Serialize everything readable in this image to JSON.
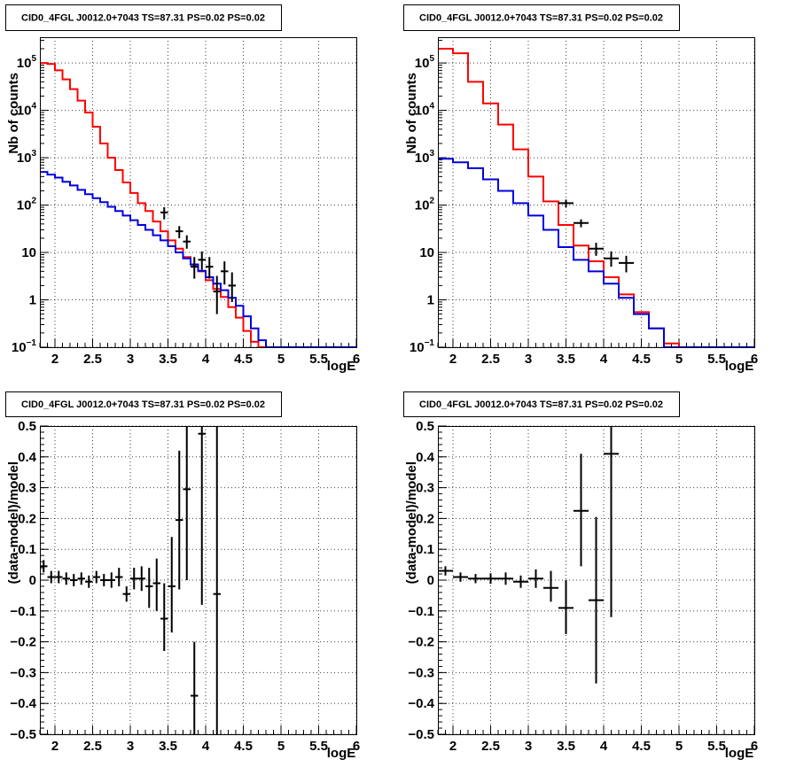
{
  "chart_data": [
    {
      "panel": "top-left",
      "type": "line",
      "title": "CID0_4FGL J0012.0+7043 TS=87.31 PS=0.02 PS=0.02",
      "xlabel": "logE",
      "ylabel": "Nb of counts",
      "ylog": true,
      "xlim": [
        1.8,
        6.0
      ],
      "ylim": [
        0.1,
        350000
      ],
      "xticks": [
        "2",
        "2.5",
        "3",
        "3.5",
        "4",
        "4.5",
        "5",
        "5.5",
        "6"
      ],
      "yticks": [
        {
          "value": 0.1,
          "base": "10",
          "exp": "−1"
        },
        {
          "value": 1,
          "label": "1"
        },
        {
          "value": 10,
          "label": "10"
        },
        {
          "value": 100,
          "base": "10",
          "exp": "2"
        },
        {
          "value": 1000,
          "base": "10",
          "exp": "3"
        },
        {
          "value": 10000,
          "base": "10",
          "exp": "4"
        },
        {
          "value": 100000,
          "base": "10",
          "exp": "5"
        }
      ],
      "grid": true,
      "step_series": [
        {
          "color": "#ff0000",
          "x0": 1.8,
          "dx": 0.1,
          "values": [
            100000,
            95000,
            70000,
            45000,
            28000,
            16000,
            9000,
            4500,
            2000,
            1000,
            550,
            300,
            180,
            110,
            75,
            45,
            28,
            18,
            12,
            8,
            5.5,
            4,
            2.6,
            1.7,
            1.15,
            0.7,
            0.42,
            0.22,
            0.13,
            0.1,
            0.1,
            0.1,
            0.1,
            0.1,
            0.1,
            0.1,
            0.1,
            0.1,
            0.1,
            0.1,
            0.1,
            0.1
          ]
        },
        {
          "color": "#0000dd",
          "x0": 1.8,
          "dx": 0.1,
          "values": [
            500,
            440,
            380,
            310,
            260,
            210,
            170,
            140,
            115,
            92,
            75,
            60,
            48,
            38,
            30,
            23,
            18,
            13.5,
            10,
            7.5,
            5.6,
            4.1,
            3,
            2.2,
            1.6,
            1.1,
            0.75,
            0.45,
            0.25,
            0.14,
            0.1,
            0.1,
            0.1,
            0.1,
            0.1,
            0.1,
            0.1,
            0.1,
            0.1,
            0.1,
            0.1,
            0.1
          ]
        }
      ],
      "points": [
        {
          "x": 3.45,
          "y": 70,
          "ylo": 50,
          "yhi": 90,
          "xerr": 0.05
        },
        {
          "x": 3.65,
          "y": 28,
          "ylo": 20,
          "yhi": 36,
          "xerr": 0.05
        },
        {
          "x": 3.75,
          "y": 17,
          "ylo": 12,
          "yhi": 23,
          "xerr": 0.05
        },
        {
          "x": 3.85,
          "y": 5,
          "ylo": 2.8,
          "yhi": 8,
          "xerr": 0.05
        },
        {
          "x": 3.95,
          "y": 7,
          "ylo": 4.3,
          "yhi": 10.5,
          "xerr": 0.05
        },
        {
          "x": 4.05,
          "y": 5,
          "ylo": 2.8,
          "yhi": 8,
          "xerr": 0.05
        },
        {
          "x": 4.15,
          "y": 1.5,
          "ylo": 0.5,
          "yhi": 3.2,
          "xerr": 0.05
        },
        {
          "x": 4.25,
          "y": 4,
          "ylo": 2.1,
          "yhi": 6.5,
          "xerr": 0.05
        },
        {
          "x": 4.35,
          "y": 2,
          "ylo": 0.9,
          "yhi": 3.8,
          "xerr": 0.05
        }
      ]
    },
    {
      "panel": "top-right",
      "type": "line",
      "title": "CID0_4FGL J0012.0+7043 TS=87.31 PS=0.02 PS=0.02",
      "xlabel": "logE",
      "ylabel": "Nb of counts",
      "ylog": true,
      "xlim": [
        1.8,
        6.0
      ],
      "ylim": [
        0.1,
        350000
      ],
      "xticks": [
        "2",
        "2.5",
        "3",
        "3.5",
        "4",
        "4.5",
        "5",
        "5.5",
        "6"
      ],
      "yticks": [
        {
          "value": 0.1,
          "base": "10",
          "exp": "−1"
        },
        {
          "value": 1,
          "label": "1"
        },
        {
          "value": 10,
          "label": "10"
        },
        {
          "value": 100,
          "base": "10",
          "exp": "2"
        },
        {
          "value": 1000,
          "base": "10",
          "exp": "3"
        },
        {
          "value": 10000,
          "base": "10",
          "exp": "4"
        },
        {
          "value": 100000,
          "base": "10",
          "exp": "5"
        }
      ],
      "grid": true,
      "step_series": [
        {
          "color": "#ff0000",
          "x0": 1.8,
          "dx": 0.2,
          "values": [
            200000,
            160000,
            40000,
            14000,
            5000,
            1500,
            400,
            120,
            38,
            14,
            6.5,
            3,
            1.3,
            0.55,
            0.25,
            0.12,
            0.1,
            0.1,
            0.1,
            0.1,
            0.1
          ]
        },
        {
          "color": "#0000dd",
          "x0": 1.8,
          "dx": 0.2,
          "values": [
            950,
            800,
            600,
            350,
            200,
            110,
            60,
            30,
            13,
            7,
            4,
            2.2,
            1.1,
            0.5,
            0.25,
            0.1,
            0.1,
            0.1,
            0.1,
            0.1,
            0.1
          ]
        }
      ],
      "points": [
        {
          "x": 3.5,
          "y": 110,
          "ylo": 90,
          "yhi": 130,
          "xerr": 0.1
        },
        {
          "x": 3.7,
          "y": 42,
          "ylo": 34,
          "yhi": 50,
          "xerr": 0.1
        },
        {
          "x": 3.9,
          "y": 12,
          "ylo": 8.5,
          "yhi": 16,
          "xerr": 0.1
        },
        {
          "x": 4.1,
          "y": 7.5,
          "ylo": 5,
          "yhi": 10.5,
          "xerr": 0.1
        },
        {
          "x": 4.3,
          "y": 6,
          "ylo": 3.8,
          "yhi": 8.5,
          "xerr": 0.1
        }
      ]
    },
    {
      "panel": "bottom-left",
      "type": "scatter",
      "title": "CID0_4FGL J0012.0+7043 TS=87.31 PS=0.02 PS=0.02",
      "xlabel": "logE",
      "ylabel": "(data-model)/model",
      "ylog": false,
      "xlim": [
        1.8,
        6.0
      ],
      "ylim": [
        -0.5,
        0.5
      ],
      "xticks": [
        "2",
        "2.5",
        "3",
        "3.5",
        "4",
        "4.5",
        "5",
        "5.5",
        "6"
      ],
      "yticks": [
        {
          "value": -0.5,
          "label": "−0.5"
        },
        {
          "value": -0.4,
          "label": "−0.4"
        },
        {
          "value": -0.3,
          "label": "−0.3"
        },
        {
          "value": -0.2,
          "label": "−0.2"
        },
        {
          "value": -0.1,
          "label": "−0.1"
        },
        {
          "value": 0,
          "label": "0"
        },
        {
          "value": 0.1,
          "label": "0.1"
        },
        {
          "value": 0.2,
          "label": "0.2"
        },
        {
          "value": 0.3,
          "label": "0.3"
        },
        {
          "value": 0.4,
          "label": "0.4"
        },
        {
          "value": 0.5,
          "label": "0.5"
        }
      ],
      "grid": true,
      "points": [
        {
          "x": 1.85,
          "y": 0.045,
          "ylo": 0.025,
          "yhi": 0.065,
          "xerr": 0.05
        },
        {
          "x": 1.95,
          "y": 0.01,
          "ylo": -0.01,
          "yhi": 0.03,
          "xerr": 0.05
        },
        {
          "x": 2.05,
          "y": 0.01,
          "ylo": -0.01,
          "yhi": 0.03,
          "xerr": 0.05
        },
        {
          "x": 2.15,
          "y": 0.005,
          "ylo": -0.015,
          "yhi": 0.025,
          "xerr": 0.05
        },
        {
          "x": 2.25,
          "y": 0.0,
          "ylo": -0.02,
          "yhi": 0.02,
          "xerr": 0.05
        },
        {
          "x": 2.35,
          "y": 0.005,
          "ylo": -0.015,
          "yhi": 0.025,
          "xerr": 0.05
        },
        {
          "x": 2.45,
          "y": -0.005,
          "ylo": -0.025,
          "yhi": 0.015,
          "xerr": 0.05
        },
        {
          "x": 2.55,
          "y": 0.01,
          "ylo": -0.01,
          "yhi": 0.03,
          "xerr": 0.05
        },
        {
          "x": 2.65,
          "y": 0.0,
          "ylo": -0.02,
          "yhi": 0.02,
          "xerr": 0.05
        },
        {
          "x": 2.75,
          "y": 0.0,
          "ylo": -0.025,
          "yhi": 0.025,
          "xerr": 0.05
        },
        {
          "x": 2.85,
          "y": 0.01,
          "ylo": -0.02,
          "yhi": 0.04,
          "xerr": 0.05
        },
        {
          "x": 2.95,
          "y": -0.045,
          "ylo": -0.07,
          "yhi": -0.02,
          "xerr": 0.05
        },
        {
          "x": 3.05,
          "y": 0.005,
          "ylo": -0.03,
          "yhi": 0.04,
          "xerr": 0.05
        },
        {
          "x": 3.15,
          "y": 0.005,
          "ylo": -0.035,
          "yhi": 0.045,
          "xerr": 0.05
        },
        {
          "x": 3.25,
          "y": -0.02,
          "ylo": -0.09,
          "yhi": 0.04,
          "xerr": 0.05
        },
        {
          "x": 3.35,
          "y": -0.01,
          "ylo": -0.1,
          "yhi": 0.07,
          "xerr": 0.05
        },
        {
          "x": 3.45,
          "y": -0.125,
          "ylo": -0.23,
          "yhi": -0.01,
          "xerr": 0.05
        },
        {
          "x": 3.55,
          "y": -0.02,
          "ylo": -0.17,
          "yhi": 0.14,
          "xerr": 0.05
        },
        {
          "x": 3.65,
          "y": 0.195,
          "ylo": -0.03,
          "yhi": 0.42,
          "xerr": 0.05
        },
        {
          "x": 3.75,
          "y": 0.295,
          "ylo": 0.0,
          "yhi": 0.5,
          "xerr": 0.05
        },
        {
          "x": 3.85,
          "y": -0.375,
          "ylo": -0.5,
          "yhi": -0.2,
          "xerr": 0.05
        },
        {
          "x": 3.95,
          "y": 0.475,
          "ylo": -0.08,
          "yhi": 0.5,
          "xerr": 0.05
        },
        {
          "x": 4.15,
          "y": -0.045,
          "ylo": -0.5,
          "yhi": 0.5,
          "xerr": 0.05
        }
      ]
    },
    {
      "panel": "bottom-right",
      "type": "scatter",
      "title": "CID0_4FGL J0012.0+7043 TS=87.31 PS=0.02 PS=0.02",
      "xlabel": "logE",
      "ylabel": "(data-model)/model",
      "ylog": false,
      "xlim": [
        1.8,
        6.0
      ],
      "ylim": [
        -0.5,
        0.5
      ],
      "xticks": [
        "2",
        "2.5",
        "3",
        "3.5",
        "4",
        "4.5",
        "5",
        "5.5",
        "6"
      ],
      "yticks": [
        {
          "value": -0.5,
          "label": "−0.5"
        },
        {
          "value": -0.4,
          "label": "−0.4"
        },
        {
          "value": -0.3,
          "label": "−0.3"
        },
        {
          "value": -0.2,
          "label": "−0.2"
        },
        {
          "value": -0.1,
          "label": "−0.1"
        },
        {
          "value": 0,
          "label": "0"
        },
        {
          "value": 0.1,
          "label": "0.1"
        },
        {
          "value": 0.2,
          "label": "0.2"
        },
        {
          "value": 0.3,
          "label": "0.3"
        },
        {
          "value": 0.4,
          "label": "0.4"
        },
        {
          "value": 0.5,
          "label": "0.5"
        }
      ],
      "grid": true,
      "points": [
        {
          "x": 1.9,
          "y": 0.03,
          "ylo": 0.015,
          "yhi": 0.045,
          "xerr": 0.1
        },
        {
          "x": 2.1,
          "y": 0.01,
          "ylo": -0.005,
          "yhi": 0.025,
          "xerr": 0.1
        },
        {
          "x": 2.3,
          "y": 0.005,
          "ylo": -0.01,
          "yhi": 0.02,
          "xerr": 0.1
        },
        {
          "x": 2.5,
          "y": 0.005,
          "ylo": -0.012,
          "yhi": 0.022,
          "xerr": 0.1
        },
        {
          "x": 2.7,
          "y": 0.005,
          "ylo": -0.015,
          "yhi": 0.025,
          "xerr": 0.1
        },
        {
          "x": 2.9,
          "y": -0.005,
          "ylo": -0.025,
          "yhi": 0.015,
          "xerr": 0.1
        },
        {
          "x": 3.1,
          "y": 0.005,
          "ylo": -0.025,
          "yhi": 0.035,
          "xerr": 0.1
        },
        {
          "x": 3.3,
          "y": -0.025,
          "ylo": -0.07,
          "yhi": 0.03,
          "xerr": 0.1
        },
        {
          "x": 3.5,
          "y": -0.09,
          "ylo": -0.175,
          "yhi": 0.0,
          "xerr": 0.1
        },
        {
          "x": 3.7,
          "y": 0.225,
          "ylo": 0.045,
          "yhi": 0.41,
          "xerr": 0.1
        },
        {
          "x": 3.9,
          "y": -0.065,
          "ylo": -0.335,
          "yhi": 0.205,
          "xerr": 0.1
        },
        {
          "x": 4.1,
          "y": 0.41,
          "ylo": -0.12,
          "yhi": 0.5,
          "xerr": 0.1
        }
      ]
    }
  ]
}
